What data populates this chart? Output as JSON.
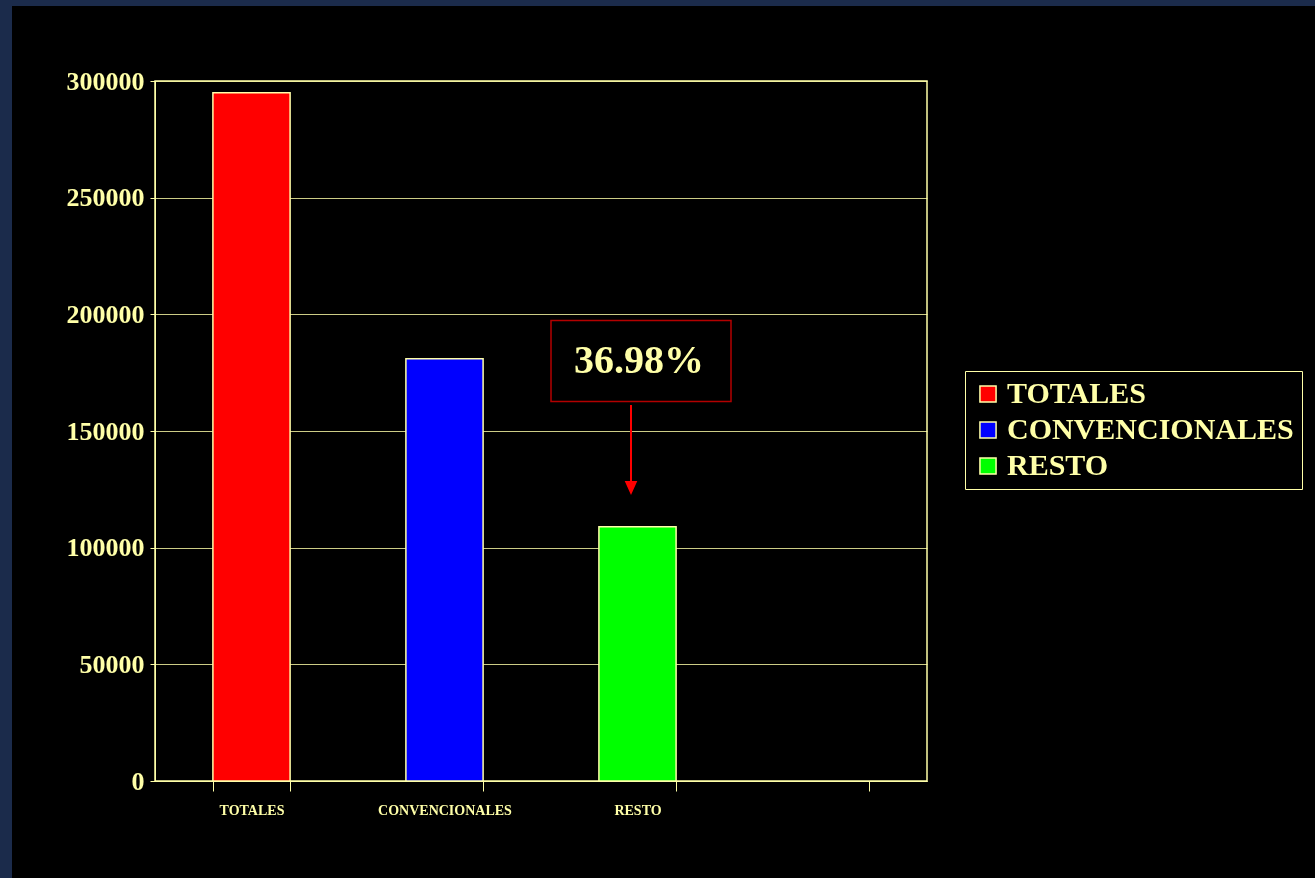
{
  "chart_data": {
    "type": "bar",
    "categories": [
      "TOTALES",
      "CONVENCIONALES",
      "RESTO",
      null
    ],
    "stacked": true,
    "series": [
      {
        "name": "TOTALES",
        "color": "#ff0000",
        "values": [
          295000,
          null,
          null,
          null
        ]
      },
      {
        "name": "CONVENCIONALES",
        "color": "#0000ff",
        "values": [
          null,
          181000,
          null,
          null
        ]
      },
      {
        "name": "RESTO",
        "color": "#00ff00",
        "values": [
          null,
          null,
          109000,
          null
        ]
      }
    ],
    "ylim": [
      0,
      300000
    ],
    "yticks": [
      0,
      50000,
      100000,
      150000,
      200000,
      250000,
      300000
    ],
    "grid": "y",
    "legend": "right",
    "annotations": [
      "36.98%"
    ]
  }
}
